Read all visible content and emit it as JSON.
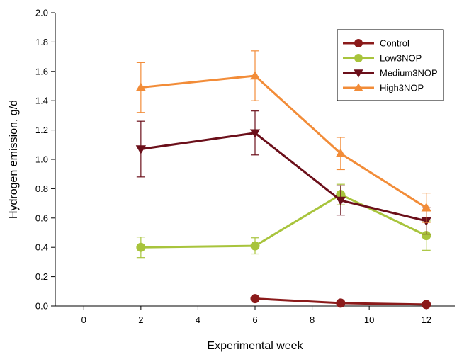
{
  "chart_data": {
    "type": "line",
    "title": "",
    "xlabel": "Experimental week",
    "ylabel": "Hydrogen emission, g/d",
    "xlim": [
      -1,
      13
    ],
    "ylim": [
      0,
      2.0
    ],
    "xticks": [
      0,
      2,
      4,
      6,
      8,
      10,
      12
    ],
    "yticks": [
      0.0,
      0.2,
      0.4,
      0.6,
      0.8,
      1.0,
      1.2,
      1.4,
      1.6,
      1.8,
      2.0
    ],
    "xtick_labels": [
      "0",
      "2",
      "4",
      "6",
      "8",
      "10",
      "12"
    ],
    "ytick_labels": [
      "0.0",
      "0.2",
      "0.4",
      "0.6",
      "0.8",
      "1.0",
      "1.2",
      "1.4",
      "1.6",
      "1.8",
      "2.0"
    ],
    "grid": false,
    "legend_position": "top-right",
    "series": [
      {
        "name": "Control",
        "color": "#8b1a1a",
        "marker": "circle",
        "x": [
          6,
          9,
          12
        ],
        "y": [
          0.05,
          0.02,
          0.01
        ],
        "error": [
          0,
          0,
          0
        ]
      },
      {
        "name": "Low3NOP",
        "color": "#a8c43c",
        "marker": "circle",
        "x": [
          2,
          6,
          9,
          12
        ],
        "y": [
          0.4,
          0.41,
          0.76,
          0.48
        ],
        "error": [
          0.07,
          0.055,
          0.07,
          0.1
        ]
      },
      {
        "name": "Medium3NOP",
        "color": "#6b0f1a",
        "marker": "triangle-down",
        "x": [
          2,
          6,
          9,
          12
        ],
        "y": [
          1.07,
          1.18,
          0.72,
          0.58
        ],
        "error": [
          0.19,
          0.15,
          0.1,
          0.09
        ]
      },
      {
        "name": "High3NOP",
        "color": "#f28c38",
        "marker": "triangle-up",
        "x": [
          2,
          6,
          9,
          12
        ],
        "y": [
          1.49,
          1.57,
          1.04,
          0.67
        ],
        "error": [
          0.17,
          0.17,
          0.11,
          0.1
        ]
      }
    ]
  }
}
